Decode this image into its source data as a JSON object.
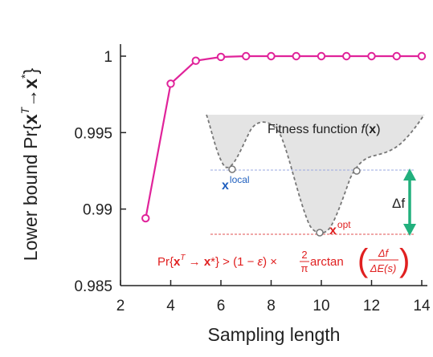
{
  "chart_data": {
    "type": "line",
    "xlabel": "Sampling length",
    "ylabel_parts": {
      "prefix": "Lower bound Pr{",
      "x": "x",
      "sup_T": "T",
      "arrow": "→",
      "x2": "x",
      "sup_star": "*",
      "suffix": "}"
    },
    "xlim": [
      2,
      14
    ],
    "ylim": [
      0.985,
      1.0
    ],
    "x_ticks": [
      2,
      4,
      6,
      8,
      10,
      12,
      14
    ],
    "x_tick_labels": [
      "2",
      "4",
      "6",
      "8",
      "10",
      "12",
      "14"
    ],
    "y_ticks": [
      0.985,
      0.99,
      0.995,
      1.0
    ],
    "y_tick_labels": [
      "0.985",
      "0.99",
      "0.995",
      "1"
    ],
    "series": [
      {
        "color": "#e0239a",
        "x": [
          3,
          4,
          5,
          6,
          7,
          8,
          9,
          10,
          11,
          12,
          13,
          14
        ],
        "y": [
          0.9894,
          0.9982,
          0.9997,
          0.99995,
          1.0,
          1.0,
          1.0,
          1.0,
          1.0,
          1.0,
          1.0,
          1.0
        ]
      }
    ],
    "inset": {
      "fitness_label": "Fitness function",
      "fitness_f": "f",
      "fitness_x": "x",
      "local_x": "x",
      "local_sup": "local",
      "opt_x": "x",
      "opt_sup": "opt",
      "delta_f": "Δf",
      "formula": {
        "pr": "Pr{",
        "x1": "x",
        "sup_t": "T",
        "arrow": " → ",
        "x2": "x",
        "star_close": "*} > (1 − ",
        "eps": "ε",
        "mid": ") × ",
        "two": "2",
        "pi": "π",
        "arctan": " arctan",
        "num": "Δf",
        "den": "ΔE(s)"
      },
      "colors": {
        "local": "#1f5fbf",
        "opt": "#e02020",
        "arrow": "#22b07d",
        "curve_fill": "#e4e4e4",
        "dash_blue": "#9aa8e0",
        "dash_red": "#e05050"
      }
    }
  }
}
